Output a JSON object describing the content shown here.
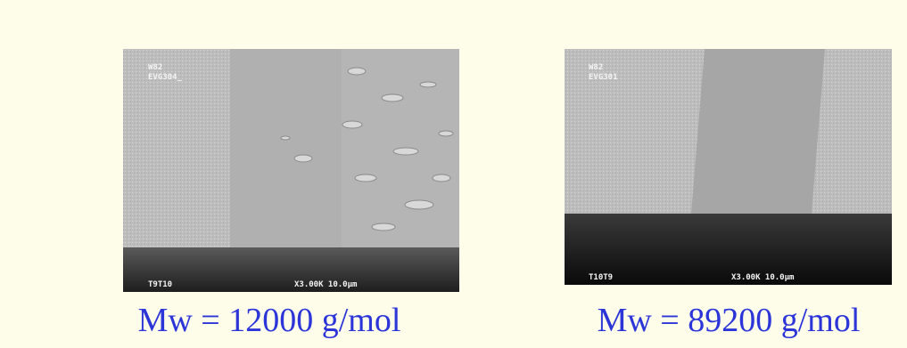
{
  "panels": [
    {
      "header": [
        "W82",
        "EVG304_"
      ],
      "footer_left": "T9T10",
      "footer_right": "X3.00K 10.0µm",
      "caption": "Mw = 12000 g/mol"
    },
    {
      "header": [
        "W82",
        "EVG301"
      ],
      "footer_left": "T10T9",
      "footer_right": "X3.00K 10.0µm",
      "caption": "Mw = 89200 g/mol"
    }
  ]
}
